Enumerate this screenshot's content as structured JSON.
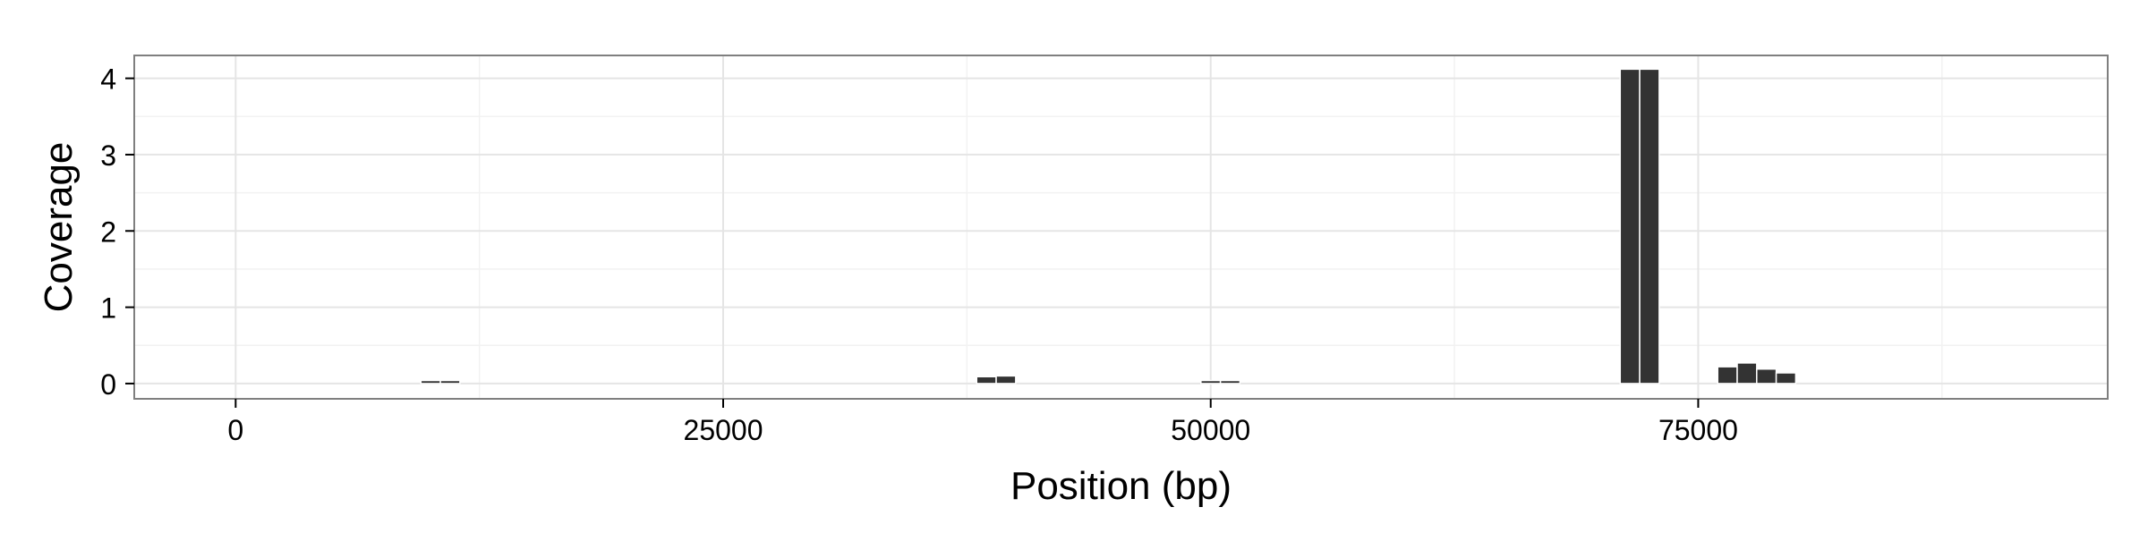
{
  "chart_data": {
    "type": "bar",
    "title": "",
    "xlabel": "Position (bp)",
    "ylabel": "Coverage",
    "xlim": [
      -5200,
      96000
    ],
    "ylim": [
      -0.2,
      4.3
    ],
    "x_ticks": [
      0,
      25000,
      50000,
      75000
    ],
    "x_tick_labels": [
      "0",
      "25000",
      "50000",
      "75000"
    ],
    "y_ticks": [
      0,
      1,
      2,
      3,
      4
    ],
    "y_tick_labels": [
      "0",
      "1",
      "2",
      "3",
      "4"
    ],
    "grid": true,
    "legend": "none",
    "bin_width": 1000,
    "series": [
      {
        "color": "#333333",
        "points": [
          {
            "x": 10000,
            "y": 0.04
          },
          {
            "x": 11000,
            "y": 0.04
          },
          {
            "x": 38500,
            "y": 0.09
          },
          {
            "x": 39500,
            "y": 0.1
          },
          {
            "x": 50000,
            "y": 0.04
          },
          {
            "x": 51000,
            "y": 0.04
          },
          {
            "x": 71500,
            "y": 4.12
          },
          {
            "x": 72500,
            "y": 4.12
          },
          {
            "x": 76500,
            "y": 0.22
          },
          {
            "x": 77500,
            "y": 0.27
          },
          {
            "x": 78500,
            "y": 0.19
          },
          {
            "x": 79500,
            "y": 0.14
          }
        ]
      }
    ]
  }
}
